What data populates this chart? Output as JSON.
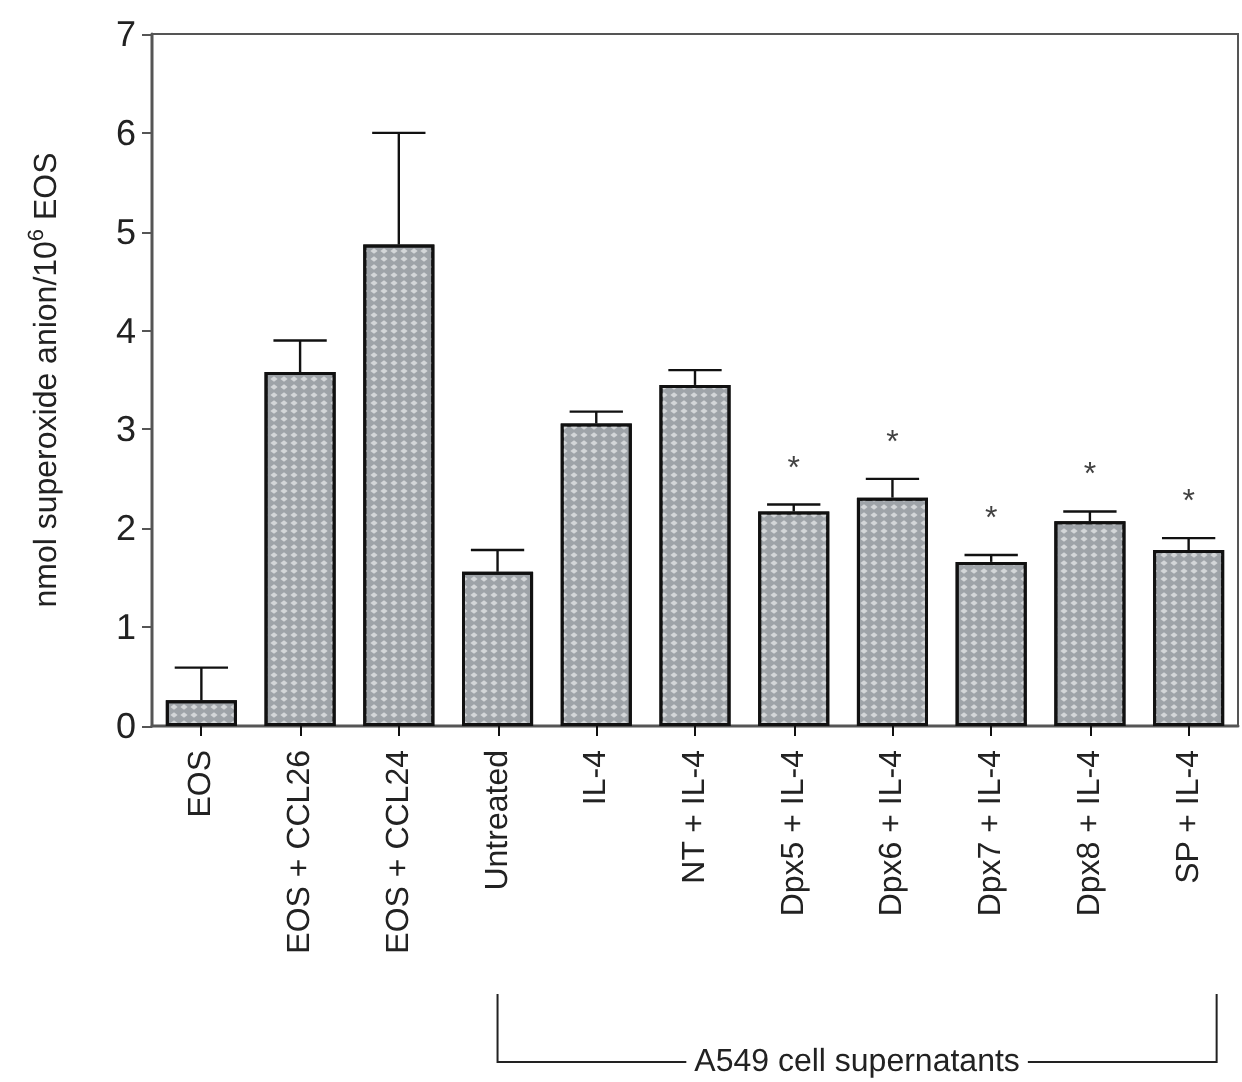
{
  "chart_data": {
    "type": "bar",
    "ylabel": "nmol superoxide anion/10$^{6}$ EOS",
    "categories": [
      "EOS",
      "EOS + CCL26",
      "EOS + CCL24",
      "Untreated",
      "IL-4",
      "NT + IL-4",
      "Dpx5 + IL-4",
      "Dpx6 + IL-4",
      "Dpx7 + IL-4",
      "Dpx8 + IL-4",
      "SP + IL-4"
    ],
    "values": [
      0.26,
      3.58,
      4.87,
      1.56,
      3.06,
      3.45,
      2.17,
      2.31,
      1.66,
      2.07,
      1.78
    ],
    "errors": [
      [
        0.26,
        0.59
      ],
      [
        3.58,
        3.9
      ],
      [
        4.87,
        6.0
      ],
      [
        1.56,
        1.78
      ],
      [
        3.06,
        3.18
      ],
      [
        3.45,
        3.6
      ],
      [
        2.17,
        2.24
      ],
      [
        2.31,
        2.5
      ],
      [
        1.66,
        1.73
      ],
      [
        2.07,
        2.17
      ],
      [
        1.78,
        1.9
      ]
    ],
    "color": "#9ea3a8",
    "ylim": [
      0,
      7
    ],
    "yticks": [
      0,
      1,
      2,
      3,
      4,
      5,
      6,
      7
    ],
    "grid": false,
    "annotations": [
      {
        "text": "*",
        "x": "Dpx5 + IL-4",
        "y": 2.24
      },
      {
        "text": "*",
        "x": "Dpx6 + IL-4",
        "y": 2.5
      },
      {
        "text": "*",
        "x": "Dpx7 + IL-4",
        "y": 1.73
      },
      {
        "text": "*",
        "x": "Dpx8 + IL-4",
        "y": 2.17
      },
      {
        "text": "*",
        "x": "SP + IL-4",
        "y": 1.9
      },
      "A549 cell supernatants"
    ]
  }
}
